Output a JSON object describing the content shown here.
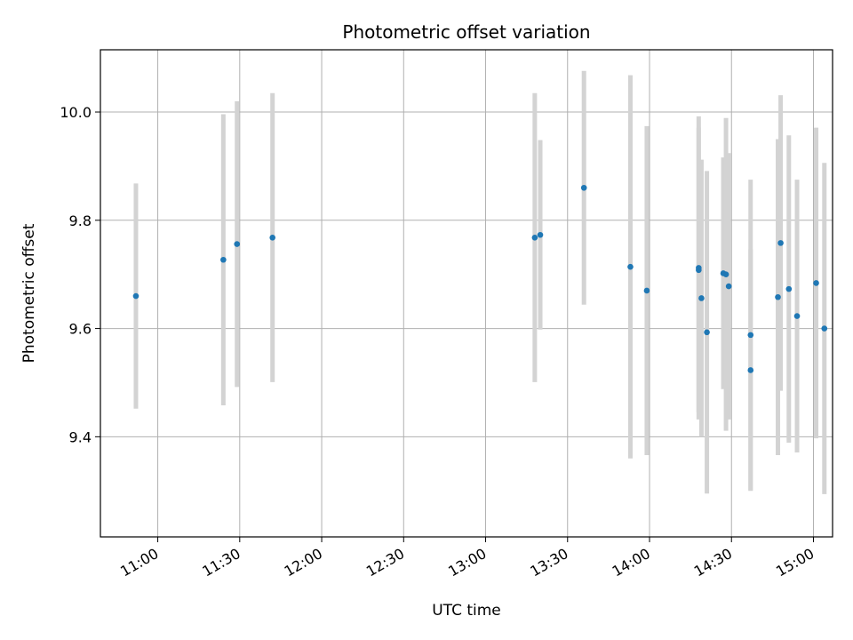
{
  "chart_data": {
    "type": "scatter",
    "title": "Photometric offset variation",
    "xlabel": "UTC time",
    "ylabel": "Photometric offset",
    "x_unit": "UTC time of day (HH:MM)",
    "xlim": [
      "10:39",
      "14:57"
    ],
    "ylim": [
      9.215,
      10.115
    ],
    "x_ticks": [
      "11:00",
      "11:30",
      "12:00",
      "12:30",
      "13:00",
      "13:30",
      "14:00",
      "14:30",
      "15:00"
    ],
    "y_ticks": [
      9.4,
      9.6,
      9.8,
      10.0
    ],
    "y_tick_labels": [
      "9.4",
      "9.6",
      "9.8",
      "10.0"
    ],
    "grid": true,
    "point_color": "#1f77b4",
    "errorbar_color": "#d3d3d3",
    "series": [
      {
        "points": [
          {
            "x": "10:52",
            "y": 9.66,
            "err": 0.208
          },
          {
            "x": "11:24",
            "y": 9.727,
            "err": 0.269
          },
          {
            "x": "11:29",
            "y": 9.756,
            "err": 0.264
          },
          {
            "x": "11:42",
            "y": 9.768,
            "err": 0.267
          },
          {
            "x": "13:18",
            "y": 9.768,
            "err": 0.267
          },
          {
            "x": "13:20",
            "y": 9.773,
            "err": 0.175
          },
          {
            "x": "13:36",
            "y": 9.86,
            "err": 0.216
          },
          {
            "x": "13:53",
            "y": 9.714,
            "err": 0.354
          },
          {
            "x": "13:59",
            "y": 9.67,
            "err": 0.304
          },
          {
            "x": "14:18",
            "y": 9.712,
            "err": 0.28
          },
          {
            "x": "14:18",
            "y": 9.708,
            "err": 0.263
          },
          {
            "x": "14:19",
            "y": 9.656,
            "err": 0.256
          },
          {
            "x": "14:21",
            "y": 9.593,
            "err": 0.298
          },
          {
            "x": "14:27",
            "y": 9.702,
            "err": 0.214
          },
          {
            "x": "14:28",
            "y": 9.7,
            "err": 0.289
          },
          {
            "x": "14:29",
            "y": 9.678,
            "err": 0.246
          },
          {
            "x": "14:37",
            "y": 9.588,
            "err": 0.287
          },
          {
            "x": "14:37",
            "y": 9.523,
            "err": 0.223
          },
          {
            "x": "14:47",
            "y": 9.658,
            "err": 0.292
          },
          {
            "x": "14:48",
            "y": 9.758,
            "err": 0.273
          },
          {
            "x": "14:51",
            "y": 9.673,
            "err": 0.284
          },
          {
            "x": "14:54",
            "y": 9.623,
            "err": 0.252
          },
          {
            "x": "15:01",
            "y": 9.684,
            "err": 0.287
          },
          {
            "x": "15:04",
            "y": 9.6,
            "err": 0.306
          }
        ]
      }
    ]
  }
}
